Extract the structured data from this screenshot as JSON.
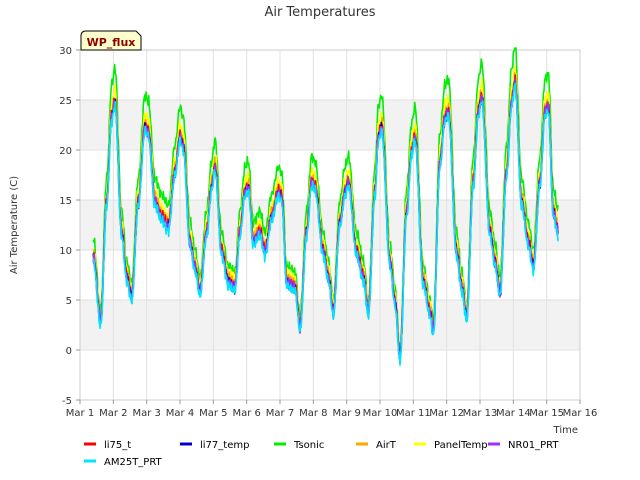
{
  "chart_data": {
    "type": "line",
    "title": "Air Temperatures",
    "xlabel": "Time",
    "ylabel": "Air Temperature (C)",
    "ylim": [
      -5,
      30
    ],
    "xlim": [
      1,
      16
    ],
    "y_ticks": [
      -5,
      0,
      5,
      10,
      15,
      20,
      25,
      30
    ],
    "x_ticks": [
      {
        "value": 1,
        "label": "Mar 1"
      },
      {
        "value": 2,
        "label": "Mar 2"
      },
      {
        "value": 3,
        "label": "Mar 3"
      },
      {
        "value": 4,
        "label": "Mar 4"
      },
      {
        "value": 5,
        "label": "Mar 5"
      },
      {
        "value": 6,
        "label": "Mar 6"
      },
      {
        "value": 7,
        "label": "Mar 7"
      },
      {
        "value": 8,
        "label": "Mar 8"
      },
      {
        "value": 9,
        "label": "Mar 9"
      },
      {
        "value": 10,
        "label": "Mar 10"
      },
      {
        "value": 11,
        "label": "Mar 11"
      },
      {
        "value": 12,
        "label": "Mar 12"
      },
      {
        "value": 13,
        "label": "Mar 13"
      },
      {
        "value": 14,
        "label": "Mar 14"
      },
      {
        "value": 15,
        "label": "Mar 15"
      },
      {
        "value": 16,
        "label": "Mar 16"
      }
    ],
    "grid": true,
    "banded_background": true,
    "legend_position": "bottom",
    "badge": "WP_flux",
    "base_profile": [
      {
        "x": 1.4,
        "y": 9.5
      },
      {
        "x": 1.62,
        "y": 3.0
      },
      {
        "x": 1.8,
        "y": 15.0
      },
      {
        "x": 1.95,
        "y": 23.5
      },
      {
        "x": 2.05,
        "y": 25.0
      },
      {
        "x": 2.25,
        "y": 12.0
      },
      {
        "x": 2.4,
        "y": 7.5
      },
      {
        "x": 2.55,
        "y": 5.5
      },
      {
        "x": 2.75,
        "y": 15.0
      },
      {
        "x": 2.95,
        "y": 22.5
      },
      {
        "x": 3.05,
        "y": 22.0
      },
      {
        "x": 3.25,
        "y": 15.0
      },
      {
        "x": 3.45,
        "y": 13.5
      },
      {
        "x": 3.65,
        "y": 12.5
      },
      {
        "x": 3.85,
        "y": 18.0
      },
      {
        "x": 4.0,
        "y": 21.5
      },
      {
        "x": 4.1,
        "y": 20.5
      },
      {
        "x": 4.3,
        "y": 11.0
      },
      {
        "x": 4.45,
        "y": 8.5
      },
      {
        "x": 4.6,
        "y": 6.0
      },
      {
        "x": 4.8,
        "y": 12.0
      },
      {
        "x": 4.95,
        "y": 16.5
      },
      {
        "x": 5.05,
        "y": 18.5
      },
      {
        "x": 5.25,
        "y": 10.0
      },
      {
        "x": 5.45,
        "y": 7.0
      },
      {
        "x": 5.65,
        "y": 6.5
      },
      {
        "x": 5.8,
        "y": 12.0
      },
      {
        "x": 5.95,
        "y": 16.0
      },
      {
        "x": 6.05,
        "y": 16.5
      },
      {
        "x": 6.2,
        "y": 11.0
      },
      {
        "x": 6.4,
        "y": 12.0
      },
      {
        "x": 6.55,
        "y": 10.0
      },
      {
        "x": 6.75,
        "y": 13.5
      },
      {
        "x": 6.95,
        "y": 16.0
      },
      {
        "x": 7.05,
        "y": 15.5
      },
      {
        "x": 7.2,
        "y": 7.0
      },
      {
        "x": 7.45,
        "y": 6.5
      },
      {
        "x": 7.6,
        "y": 2.5
      },
      {
        "x": 7.8,
        "y": 12.0
      },
      {
        "x": 7.95,
        "y": 17.0
      },
      {
        "x": 8.05,
        "y": 16.5
      },
      {
        "x": 8.3,
        "y": 10.0
      },
      {
        "x": 8.45,
        "y": 7.5
      },
      {
        "x": 8.6,
        "y": 4.0
      },
      {
        "x": 8.8,
        "y": 13.0
      },
      {
        "x": 8.95,
        "y": 16.0
      },
      {
        "x": 9.05,
        "y": 17.0
      },
      {
        "x": 9.3,
        "y": 10.0
      },
      {
        "x": 9.5,
        "y": 7.5
      },
      {
        "x": 9.65,
        "y": 4.0
      },
      {
        "x": 9.85,
        "y": 16.0
      },
      {
        "x": 9.95,
        "y": 21.5
      },
      {
        "x": 10.05,
        "y": 22.5
      },
      {
        "x": 10.3,
        "y": 9.0
      },
      {
        "x": 10.45,
        "y": 5.0
      },
      {
        "x": 10.6,
        "y": -0.5
      },
      {
        "x": 10.8,
        "y": 14.0
      },
      {
        "x": 10.95,
        "y": 20.0
      },
      {
        "x": 11.05,
        "y": 21.5
      },
      {
        "x": 11.3,
        "y": 7.0
      },
      {
        "x": 11.5,
        "y": 4.0
      },
      {
        "x": 11.6,
        "y": 2.0
      },
      {
        "x": 11.8,
        "y": 19.0
      },
      {
        "x": 11.95,
        "y": 23.5
      },
      {
        "x": 12.05,
        "y": 24.0
      },
      {
        "x": 12.3,
        "y": 10.0
      },
      {
        "x": 12.45,
        "y": 6.5
      },
      {
        "x": 12.6,
        "y": 3.5
      },
      {
        "x": 12.8,
        "y": 17.0
      },
      {
        "x": 12.95,
        "y": 24.0
      },
      {
        "x": 13.05,
        "y": 25.5
      },
      {
        "x": 13.3,
        "y": 12.0
      },
      {
        "x": 13.45,
        "y": 9.0
      },
      {
        "x": 13.6,
        "y": 6.0
      },
      {
        "x": 13.8,
        "y": 18.0
      },
      {
        "x": 13.95,
        "y": 25.0
      },
      {
        "x": 14.05,
        "y": 27.0
      },
      {
        "x": 14.25,
        "y": 15.0
      },
      {
        "x": 14.45,
        "y": 11.0
      },
      {
        "x": 14.6,
        "y": 8.5
      },
      {
        "x": 14.8,
        "y": 17.0
      },
      {
        "x": 14.95,
        "y": 24.0
      },
      {
        "x": 15.05,
        "y": 24.5
      },
      {
        "x": 15.2,
        "y": 14.0
      },
      {
        "x": 15.35,
        "y": 12.0
      }
    ],
    "series": [
      {
        "name": "li75_t",
        "color": "#ff0000",
        "offset": 0.0,
        "amp": 1.0
      },
      {
        "name": "li77_temp",
        "color": "#0000cc",
        "offset": -0.3,
        "amp": 1.0
      },
      {
        "name": "Tsonic",
        "color": "#00ee00",
        "offset": 2.0,
        "amp": 1.1
      },
      {
        "name": "AirT",
        "color": "#ffa500",
        "offset": 0.3,
        "amp": 1.0
      },
      {
        "name": "PanelTemp",
        "color": "#ffff00",
        "offset": 0.8,
        "amp": 1.03
      },
      {
        "name": "NR01_PRT",
        "color": "#9933ff",
        "offset": -0.2,
        "amp": 1.0
      },
      {
        "name": "AM25T_PRT",
        "color": "#00e5ff",
        "offset": -0.6,
        "amp": 1.0
      }
    ]
  }
}
